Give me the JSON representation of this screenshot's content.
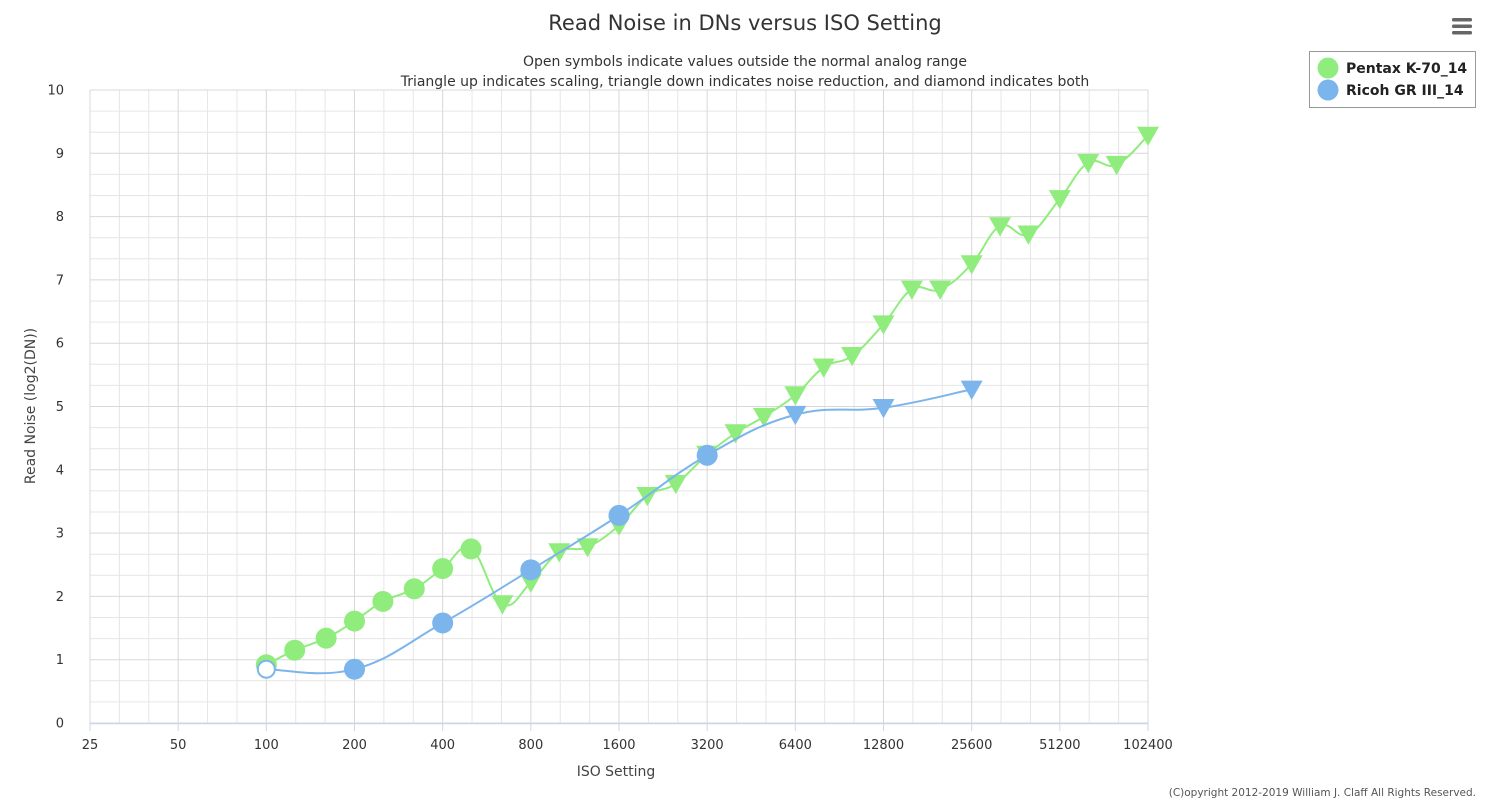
{
  "chart_data": {
    "type": "line",
    "title": "Read Noise in DNs versus ISO Setting",
    "subtitle_lines": [
      "Open symbols indicate values outside the normal analog range",
      "Triangle up indicates scaling, triangle down indicates noise reduction, and diamond indicates both"
    ],
    "xlabel": "ISO Setting",
    "ylabel": "Read Noise (log2(DN))",
    "x_scale": "log2",
    "x_ticks": [
      "25",
      "50",
      "100",
      "200",
      "400",
      "800",
      "1600",
      "3200",
      "6400",
      "12800",
      "25600",
      "51200",
      "102400"
    ],
    "xlim": [
      25,
      102400
    ],
    "y_ticks": [
      "0",
      "1",
      "2",
      "3",
      "4",
      "5",
      "6",
      "7",
      "8",
      "9",
      "10"
    ],
    "ylim": [
      0,
      10
    ],
    "grid": true,
    "legend_position": "top-right",
    "series": [
      {
        "name": "Pentax K-70_14",
        "color": "#90ed7d",
        "points": [
          {
            "x": 100,
            "y": 0.92,
            "marker": "circle"
          },
          {
            "x": 125,
            "y": 1.15,
            "marker": "circle"
          },
          {
            "x": 160,
            "y": 1.34,
            "marker": "circle"
          },
          {
            "x": 200,
            "y": 1.61,
            "marker": "circle"
          },
          {
            "x": 250,
            "y": 1.92,
            "marker": "circle"
          },
          {
            "x": 320,
            "y": 2.12,
            "marker": "circle"
          },
          {
            "x": 400,
            "y": 2.44,
            "marker": "circle"
          },
          {
            "x": 500,
            "y": 2.75,
            "marker": "circle"
          },
          {
            "x": 640,
            "y": 1.88,
            "marker": "triangle-down"
          },
          {
            "x": 800,
            "y": 2.22,
            "marker": "triangle-down"
          },
          {
            "x": 1000,
            "y": 2.7,
            "marker": "triangle-down"
          },
          {
            "x": 1250,
            "y": 2.78,
            "marker": "triangle-down"
          },
          {
            "x": 1600,
            "y": 3.12,
            "marker": "triangle-down"
          },
          {
            "x": 2000,
            "y": 3.59,
            "marker": "triangle-down"
          },
          {
            "x": 2500,
            "y": 3.78,
            "marker": "triangle-down"
          },
          {
            "x": 3200,
            "y": 4.24,
            "marker": "triangle-down"
          },
          {
            "x": 4000,
            "y": 4.58,
            "marker": "triangle-down"
          },
          {
            "x": 5000,
            "y": 4.84,
            "marker": "triangle-down"
          },
          {
            "x": 6400,
            "y": 5.18,
            "marker": "triangle-down"
          },
          {
            "x": 8000,
            "y": 5.62,
            "marker": "triangle-down"
          },
          {
            "x": 10000,
            "y": 5.8,
            "marker": "triangle-down"
          },
          {
            "x": 12800,
            "y": 6.3,
            "marker": "triangle-down"
          },
          {
            "x": 16000,
            "y": 6.85,
            "marker": "triangle-down"
          },
          {
            "x": 20000,
            "y": 6.85,
            "marker": "triangle-down"
          },
          {
            "x": 25600,
            "y": 7.25,
            "marker": "triangle-down"
          },
          {
            "x": 32000,
            "y": 7.85,
            "marker": "triangle-down"
          },
          {
            "x": 40000,
            "y": 7.72,
            "marker": "triangle-down"
          },
          {
            "x": 51200,
            "y": 8.28,
            "marker": "triangle-down"
          },
          {
            "x": 64000,
            "y": 8.85,
            "marker": "triangle-down"
          },
          {
            "x": 80000,
            "y": 8.82,
            "marker": "triangle-down"
          },
          {
            "x": 102400,
            "y": 9.28,
            "marker": "triangle-down"
          }
        ]
      },
      {
        "name": "Ricoh GR III_14",
        "color": "#7cb5ec",
        "points": [
          {
            "x": 100,
            "y": 0.85,
            "marker": "circle-open"
          },
          {
            "x": 200,
            "y": 0.85,
            "marker": "circle"
          },
          {
            "x": 400,
            "y": 1.58,
            "marker": "circle"
          },
          {
            "x": 800,
            "y": 2.42,
            "marker": "circle"
          },
          {
            "x": 1600,
            "y": 3.28,
            "marker": "circle"
          },
          {
            "x": 3200,
            "y": 4.23,
            "marker": "circle"
          },
          {
            "x": 6400,
            "y": 4.87,
            "marker": "triangle-down"
          },
          {
            "x": 12800,
            "y": 4.98,
            "marker": "triangle-down"
          },
          {
            "x": 25600,
            "y": 5.27,
            "marker": "triangle-down"
          }
        ]
      }
    ]
  },
  "copyright": "(C)opyright 2012-2019 William J. Claff All Rights Reserved.",
  "menu_icon": "hamburger-menu-icon",
  "colors": {
    "grid": "#d8d8d8",
    "minor_grid": "#e6e6e6",
    "axis": "#ccd6eb"
  }
}
